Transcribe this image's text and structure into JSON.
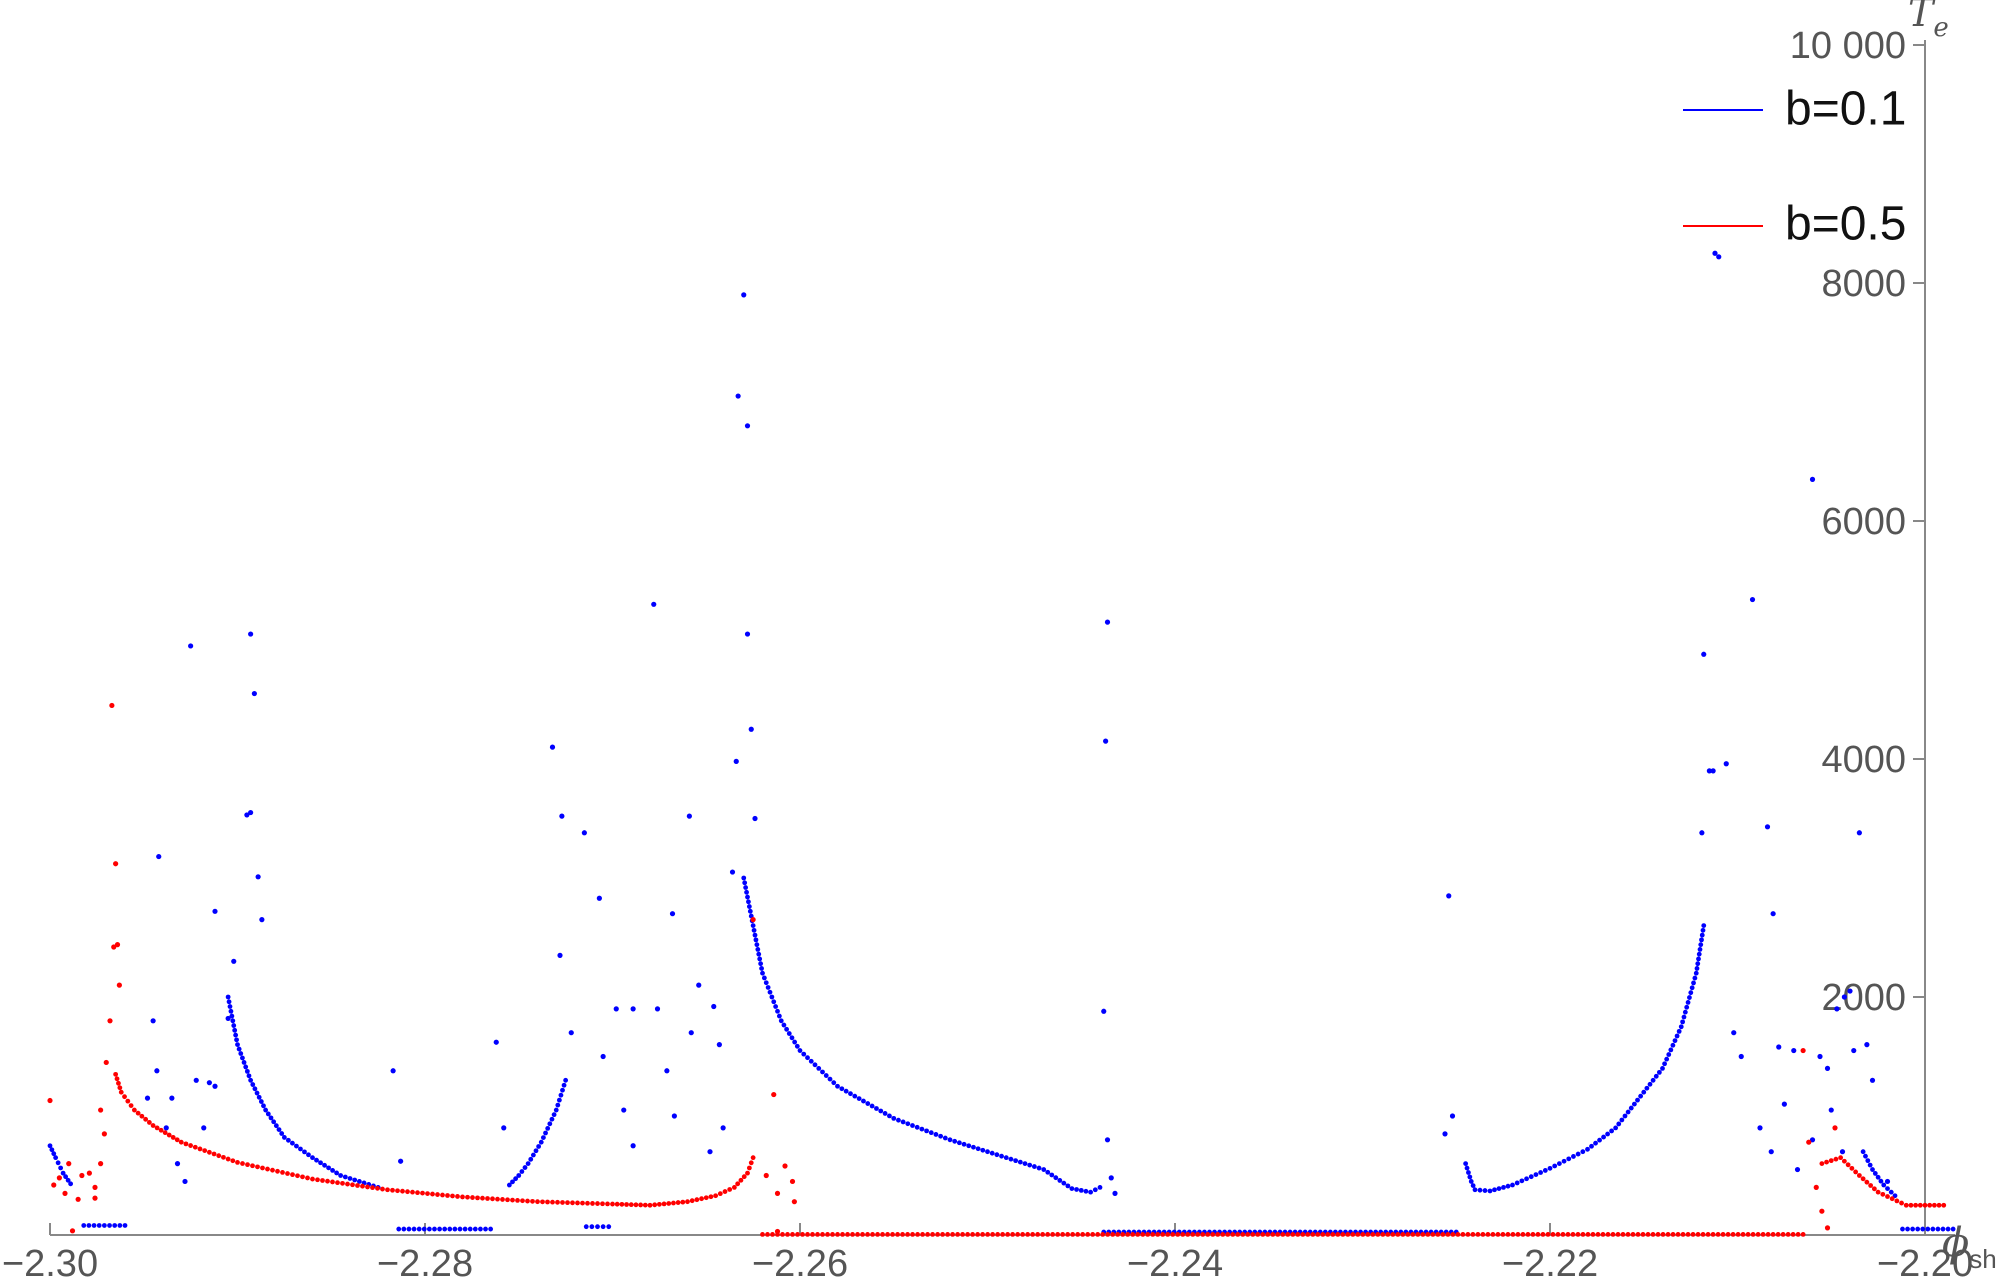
{
  "chart_data": {
    "type": "scatter",
    "x_axis": {
      "label_main": "ϕ",
      "label_sub": "sh",
      "min": -2.3,
      "max": -2.2,
      "ticks": [
        -2.3,
        -2.28,
        -2.26,
        -2.24,
        -2.22,
        -2.2
      ],
      "tick_labels": [
        "−2.30",
        "−2.28",
        "−2.26",
        "−2.24",
        "−2.22",
        "−2.20"
      ]
    },
    "y_axis": {
      "label_main": "T",
      "label_sub": "e",
      "min": 0,
      "max": 10000,
      "ticks": [
        2000,
        4000,
        6000,
        8000,
        10000
      ],
      "tick_labels": [
        "2000",
        "4000",
        "6000",
        "8000",
        "10 000"
      ]
    },
    "grid": false,
    "legend_position": "top-right",
    "series": [
      {
        "name": "b=0.1",
        "color": "#0000ff",
        "segments": [
          [
            [
              -2.3,
              750
            ],
            [
              -2.2997,
              650
            ],
            [
              -2.2993,
              520
            ],
            [
              -2.2989,
              430
            ]
          ],
          [
            [
              -2.2982,
              80
            ],
            [
              -2.296,
              80
            ]
          ],
          [
            [
              -2.2905,
              2000
            ],
            [
              -2.29,
              1600
            ],
            [
              -2.2893,
              1300
            ],
            [
              -2.2885,
              1050
            ],
            [
              -2.2875,
              820
            ],
            [
              -2.286,
              650
            ],
            [
              -2.2845,
              500
            ],
            [
              -2.2825,
              400
            ]
          ],
          [
            [
              -2.2814,
              50
            ],
            [
              -2.2765,
              50
            ]
          ],
          [
            [
              -2.2755,
              420
            ],
            [
              -2.275,
              500
            ],
            [
              -2.2745,
              600
            ],
            [
              -2.2738,
              780
            ],
            [
              -2.273,
              1050
            ],
            [
              -2.2725,
              1300
            ]
          ],
          [
            [
              -2.2714,
              70
            ],
            [
              -2.2702,
              70
            ]
          ],
          [
            [
              -2.263,
              3000
            ],
            [
              -2.2625,
              2600
            ],
            [
              -2.262,
              2200
            ],
            [
              -2.261,
              1800
            ],
            [
              -2.26,
              1550
            ],
            [
              -2.258,
              1250
            ],
            [
              -2.255,
              980
            ],
            [
              -2.252,
              800
            ],
            [
              -2.249,
              650
            ],
            [
              -2.247,
              550
            ],
            [
              -2.2455,
              390
            ],
            [
              -2.2445,
              360
            ],
            [
              -2.244,
              400
            ]
          ],
          [
            [
              -2.2438,
              25
            ],
            [
              -2.225,
              25
            ]
          ],
          [
            [
              -2.2245,
              600
            ],
            [
              -2.2242,
              450
            ],
            [
              -2.224,
              380
            ],
            [
              -2.2232,
              370
            ],
            [
              -2.222,
              420
            ],
            [
              -2.22,
              560
            ],
            [
              -2.218,
              720
            ],
            [
              -2.2165,
              900
            ],
            [
              -2.2155,
              1100
            ],
            [
              -2.214,
              1400
            ],
            [
              -2.213,
              1750
            ],
            [
              -2.2122,
              2200
            ],
            [
              -2.2118,
              2600
            ]
          ],
          [
            [
              -2.2033,
              700
            ],
            [
              -2.2028,
              550
            ],
            [
              -2.2022,
              420
            ],
            [
              -2.2016,
              330
            ]
          ],
          [
            [
              -2.2012,
              50
            ],
            [
              -2.1985,
              50
            ]
          ]
        ],
        "points": [
          [
            -2.263,
            7900
          ],
          [
            -2.2633,
            7050
          ],
          [
            -2.2628,
            6800
          ],
          [
            -2.2628,
            5050
          ],
          [
            -2.2626,
            4250
          ],
          [
            -2.2634,
            3980
          ],
          [
            -2.2624,
            3500
          ],
          [
            -2.2636,
            3050
          ],
          [
            -2.2893,
            5050
          ],
          [
            -2.2891,
            4550
          ],
          [
            -2.2893,
            3550
          ],
          [
            -2.2895,
            3530
          ],
          [
            -2.2889,
            3010
          ],
          [
            -2.2887,
            2650
          ],
          [
            -2.2902,
            2300
          ],
          [
            -2.2925,
            4950
          ],
          [
            -2.2942,
            3180
          ],
          [
            -2.2912,
            2720
          ],
          [
            -2.2945,
            1800
          ],
          [
            -2.2943,
            1380
          ],
          [
            -2.2948,
            1150
          ],
          [
            -2.2935,
            1150
          ],
          [
            -2.2922,
            1300
          ],
          [
            -2.2915,
            1280
          ],
          [
            -2.2905,
            1820
          ],
          [
            -2.2932,
            600
          ],
          [
            -2.2928,
            450
          ],
          [
            -2.2938,
            900
          ],
          [
            -2.2918,
            900
          ],
          [
            -2.2912,
            1250
          ],
          [
            -2.2732,
            4100
          ],
          [
            -2.2727,
            3520
          ],
          [
            -2.2715,
            3380
          ],
          [
            -2.2728,
            2350
          ],
          [
            -2.2707,
            2830
          ],
          [
            -2.2722,
            1700
          ],
          [
            -2.2705,
            1500
          ],
          [
            -2.2698,
            1900
          ],
          [
            -2.2694,
            1050
          ],
          [
            -2.2689,
            750
          ],
          [
            -2.2678,
            5300
          ],
          [
            -2.2689,
            1900
          ],
          [
            -2.2676,
            1900
          ],
          [
            -2.2671,
            1380
          ],
          [
            -2.2667,
            1000
          ],
          [
            -2.2659,
            3520
          ],
          [
            -2.2658,
            1700
          ],
          [
            -2.2654,
            2100
          ],
          [
            -2.2646,
            1920
          ],
          [
            -2.2643,
            1600
          ],
          [
            -2.2641,
            900
          ],
          [
            -2.2648,
            700
          ],
          [
            -2.2668,
            2700
          ],
          [
            -2.2817,
            1380
          ],
          [
            -2.2813,
            620
          ],
          [
            -2.2762,
            1620
          ],
          [
            -2.2758,
            900
          ],
          [
            -2.2436,
            5150
          ],
          [
            -2.2437,
            4150
          ],
          [
            -2.2438,
            1880
          ],
          [
            -2.2436,
            800
          ],
          [
            -2.2434,
            480
          ],
          [
            -2.2432,
            350
          ],
          [
            -2.2254,
            2850
          ],
          [
            -2.2252,
            1000
          ],
          [
            -2.2256,
            850
          ],
          [
            -2.2112,
            8250
          ],
          [
            -2.211,
            8220
          ],
          [
            -2.2118,
            4880
          ],
          [
            -2.2115,
            3900
          ],
          [
            -2.2119,
            3380
          ],
          [
            -2.2113,
            3900
          ],
          [
            -2.2106,
            3960
          ],
          [
            -2.2102,
            1700
          ],
          [
            -2.2098,
            1500
          ],
          [
            -2.2092,
            5340
          ],
          [
            -2.2084,
            3430
          ],
          [
            -2.2081,
            2700
          ],
          [
            -2.2078,
            1580
          ],
          [
            -2.207,
            1550
          ],
          [
            -2.206,
            6350
          ],
          [
            -2.2056,
            1500
          ],
          [
            -2.2052,
            1400
          ],
          [
            -2.2047,
            1900
          ],
          [
            -2.2043,
            2000
          ],
          [
            -2.204,
            2050
          ],
          [
            -2.2038,
            1550
          ],
          [
            -2.2035,
            3380
          ],
          [
            -2.2031,
            1600
          ],
          [
            -2.2028,
            1300
          ],
          [
            -2.202,
            450
          ],
          [
            -2.2088,
            900
          ],
          [
            -2.2082,
            700
          ],
          [
            -2.2075,
            1100
          ],
          [
            -2.2068,
            550
          ],
          [
            -2.206,
            800
          ],
          [
            -2.205,
            1050
          ],
          [
            -2.2044,
            700
          ]
        ]
      },
      {
        "name": "b=0.5",
        "color": "#ff0000",
        "segments": [
          [
            [
              -2.2965,
              1350
            ],
            [
              -2.2962,
              1200
            ],
            [
              -2.2955,
              1050
            ],
            [
              -2.2945,
              920
            ],
            [
              -2.293,
              780
            ],
            [
              -2.29,
              610
            ],
            [
              -2.286,
              470
            ],
            [
              -2.282,
              380
            ],
            [
              -2.278,
              320
            ],
            [
              -2.274,
              280
            ],
            [
              -2.27,
              260
            ],
            [
              -2.268,
              250
            ],
            [
              -2.266,
              280
            ],
            [
              -2.2645,
              330
            ],
            [
              -2.2635,
              400
            ],
            [
              -2.2628,
              520
            ],
            [
              -2.2625,
              650
            ]
          ],
          [
            [
              -2.262,
              5
            ],
            [
              -2.2065,
              5
            ]
          ],
          [
            [
              -2.2055,
              600
            ],
            [
              -2.2045,
              650
            ],
            [
              -2.2035,
              500
            ],
            [
              -2.2025,
              360
            ],
            [
              -2.201,
              250
            ],
            [
              -2.199,
              250
            ]
          ]
        ],
        "points": [
          [
            -2.2967,
            4450
          ],
          [
            -2.2965,
            3120
          ],
          [
            -2.2966,
            2420
          ],
          [
            -2.2964,
            2440
          ],
          [
            -2.2963,
            2100
          ],
          [
            -2.2968,
            1800
          ],
          [
            -2.297,
            1450
          ],
          [
            -2.3,
            1130
          ],
          [
            -2.2998,
            420
          ],
          [
            -2.2995,
            480
          ],
          [
            -2.2992,
            350
          ],
          [
            -2.299,
            600
          ],
          [
            -2.2985,
            300
          ],
          [
            -2.2983,
            500
          ],
          [
            -2.2979,
            520
          ],
          [
            -2.2976,
            400
          ],
          [
            -2.2973,
            1050
          ],
          [
            -2.2971,
            850
          ],
          [
            -2.2973,
            600
          ],
          [
            -2.2976,
            310
          ],
          [
            -2.2988,
            35
          ],
          [
            -2.2625,
            2650
          ],
          [
            -2.2614,
            1180
          ],
          [
            -2.2618,
            500
          ],
          [
            -2.2612,
            350
          ],
          [
            -2.2608,
            580
          ],
          [
            -2.2604,
            450
          ],
          [
            -2.2603,
            280
          ],
          [
            -2.2612,
            30
          ],
          [
            -2.2065,
            1550
          ],
          [
            -2.2062,
            780
          ],
          [
            -2.2058,
            400
          ],
          [
            -2.2055,
            200
          ],
          [
            -2.2052,
            60
          ],
          [
            -2.2048,
            900
          ]
        ]
      }
    ]
  }
}
